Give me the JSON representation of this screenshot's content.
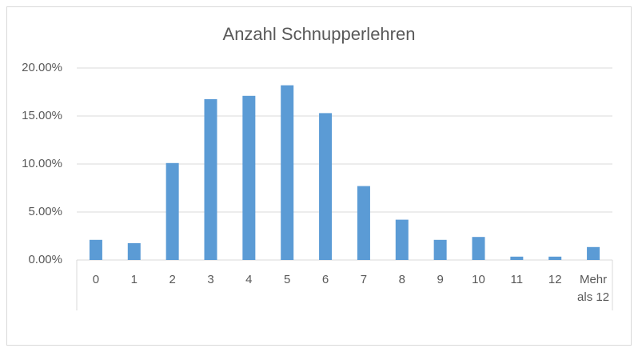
{
  "chart_data": {
    "type": "bar",
    "title": "Anzahl Schnupperlehren",
    "categories": [
      "0",
      "1",
      "2",
      "3",
      "4",
      "5",
      "6",
      "7",
      "8",
      "9",
      "10",
      "11",
      "12",
      "Mehr als 12"
    ],
    "values": [
      2.1,
      1.75,
      10.1,
      16.75,
      17.1,
      18.2,
      15.3,
      7.7,
      4.2,
      2.1,
      2.4,
      0.35,
      0.35,
      1.35
    ],
    "color": "#5b9bd5",
    "ylim": [
      0,
      20
    ],
    "yticks": [
      {
        "value": 0,
        "label": "0.00%"
      },
      {
        "value": 5,
        "label": "5.00%"
      },
      {
        "value": 10,
        "label": "10.00%"
      },
      {
        "value": 15,
        "label": "15.00%"
      },
      {
        "value": 20,
        "label": "20.00%"
      }
    ],
    "grid": true
  }
}
